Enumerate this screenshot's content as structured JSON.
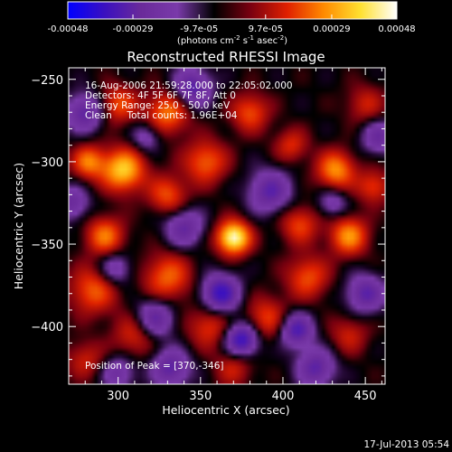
{
  "chart_data": {
    "type": "heatmap",
    "title": "Reconstructed RHESSI Image",
    "xlabel": "Heliocentric X (arcsec)",
    "ylabel": "Heliocentric Y (arcsec)",
    "xlim": [
      270,
      462
    ],
    "ylim": [
      -435,
      -243
    ],
    "x_ticks": [
      300,
      350,
      400,
      450
    ],
    "y_ticks": [
      -250,
      -300,
      -350,
      -400
    ],
    "colorbar": {
      "ticks": [
        {
          "value": -0.00048,
          "label": "-0.00048"
        },
        {
          "value": -0.00029,
          "label": "-0.00029"
        },
        {
          "value": -9.7e-05,
          "label": "-9.7e-05"
        },
        {
          "value": 9.7e-05,
          "label": "9.7e-05"
        },
        {
          "value": 0.00029,
          "label": "0.00029"
        },
        {
          "value": 0.00048,
          "label": "0.00048"
        }
      ],
      "unit_main": "(photons cm",
      "unit_exp1": "-2",
      "unit_mid": " s",
      "unit_exp2": "-1",
      "unit_end": " asec",
      "unit_exp3": "-2",
      "unit_close": ")",
      "colors": [
        "#0000ff",
        "#3a10c0",
        "#6a2a9a",
        "#7a3aaa",
        "#000000",
        "#7a0010",
        "#e02000",
        "#ff8a00",
        "#ffe030",
        "#ffffff"
      ]
    },
    "annotations": [
      "16-Aug-2006 21:59:28.000 to 22:05:02.000",
      "Detectors: 4F 5F 6F 7F 8F, Att 0",
      "Energy Range: 25.0 - 50.0 keV",
      "Clean     Total counts: 1.96E+04"
    ],
    "peak_label": "Position of Peak = [370,-346]",
    "peak": {
      "x": 370,
      "y": -346
    },
    "grid": false,
    "blobs": [
      {
        "x": 370,
        "y": -346,
        "v": 1.0,
        "s": 7
      },
      {
        "x": 303,
        "y": -305,
        "v": 0.78,
        "s": 9
      },
      {
        "x": 282,
        "y": -300,
        "v": 0.55,
        "s": 7
      },
      {
        "x": 330,
        "y": -270,
        "v": 0.55,
        "s": 9
      },
      {
        "x": 353,
        "y": -300,
        "v": 0.5,
        "s": 9
      },
      {
        "x": 380,
        "y": -270,
        "v": 0.45,
        "s": 8
      },
      {
        "x": 405,
        "y": -290,
        "v": 0.35,
        "s": 7
      },
      {
        "x": 432,
        "y": -305,
        "v": 0.62,
        "s": 8
      },
      {
        "x": 455,
        "y": -315,
        "v": 0.4,
        "s": 7
      },
      {
        "x": 440,
        "y": -345,
        "v": 0.62,
        "s": 8
      },
      {
        "x": 410,
        "y": -338,
        "v": 0.42,
        "s": 8
      },
      {
        "x": 415,
        "y": -370,
        "v": 0.45,
        "s": 9
      },
      {
        "x": 292,
        "y": -345,
        "v": 0.55,
        "s": 8
      },
      {
        "x": 330,
        "y": -320,
        "v": 0.45,
        "s": 8
      },
      {
        "x": 285,
        "y": -378,
        "v": 0.48,
        "s": 10
      },
      {
        "x": 330,
        "y": -370,
        "v": 0.5,
        "s": 10
      },
      {
        "x": 310,
        "y": -405,
        "v": 0.35,
        "s": 9
      },
      {
        "x": 355,
        "y": -400,
        "v": 0.38,
        "s": 9
      },
      {
        "x": 390,
        "y": -395,
        "v": 0.4,
        "s": 9
      },
      {
        "x": 440,
        "y": -405,
        "v": 0.3,
        "s": 8
      },
      {
        "x": 300,
        "y": -265,
        "v": 0.45,
        "s": 8
      },
      {
        "x": 450,
        "y": -265,
        "v": 0.3,
        "s": 8
      },
      {
        "x": 280,
        "y": -420,
        "v": 0.3,
        "s": 8
      },
      {
        "x": 370,
        "y": -425,
        "v": 0.3,
        "s": 8
      },
      {
        "x": 345,
        "y": -255,
        "v": -0.6,
        "s": 8
      },
      {
        "x": 280,
        "y": -270,
        "v": -0.55,
        "s": 8
      },
      {
        "x": 392,
        "y": -318,
        "v": -0.55,
        "s": 9
      },
      {
        "x": 340,
        "y": -340,
        "v": -0.5,
        "s": 8
      },
      {
        "x": 458,
        "y": -285,
        "v": -0.45,
        "s": 7
      },
      {
        "x": 362,
        "y": -380,
        "v": -0.75,
        "s": 8
      },
      {
        "x": 322,
        "y": -395,
        "v": -0.55,
        "s": 8
      },
      {
        "x": 375,
        "y": -408,
        "v": -0.8,
        "s": 7
      },
      {
        "x": 408,
        "y": -402,
        "v": -0.65,
        "s": 7
      },
      {
        "x": 298,
        "y": -365,
        "v": -0.4,
        "s": 7
      },
      {
        "x": 450,
        "y": -380,
        "v": -0.55,
        "s": 8
      },
      {
        "x": 420,
        "y": -425,
        "v": -0.55,
        "s": 8
      },
      {
        "x": 332,
        "y": -425,
        "v": -0.55,
        "s": 8
      },
      {
        "x": 300,
        "y": -428,
        "v": -0.4,
        "s": 7
      },
      {
        "x": 272,
        "y": -325,
        "v": -0.45,
        "s": 7
      },
      {
        "x": 317,
        "y": -285,
        "v": -0.35,
        "s": 6
      },
      {
        "x": 430,
        "y": -325,
        "v": -0.35,
        "s": 6
      }
    ]
  },
  "timestamp": "17-Jul-2013 05:54"
}
